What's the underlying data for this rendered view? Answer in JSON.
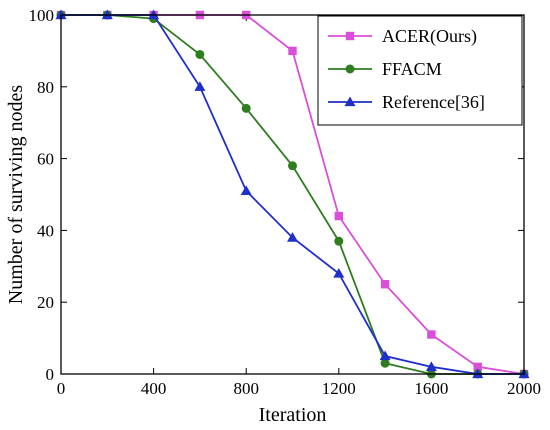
{
  "chart_data": {
    "type": "line",
    "title": "",
    "xlabel": "Iteration",
    "ylabel": "Number of surviving nodes",
    "xlim": [
      0,
      2000
    ],
    "ylim": [
      0,
      100
    ],
    "xticks": [
      0,
      400,
      800,
      1200,
      1600,
      2000
    ],
    "yticks": [
      0,
      20,
      40,
      60,
      80,
      100
    ],
    "x_tick_labels": [
      "0",
      "400",
      "800",
      "1200",
      "1600",
      "2000"
    ],
    "y_tick_labels": [
      "0",
      "20",
      "40",
      "60",
      "80",
      "100"
    ],
    "grid": false,
    "legend_position": "top-right",
    "x": [
      0,
      200,
      400,
      600,
      800,
      1000,
      1200,
      1400,
      1600,
      1800,
      2000
    ],
    "series": [
      {
        "name": "ACER(Ours)",
        "color": "#d94fd9",
        "marker": "square",
        "values": [
          100,
          100,
          100,
          100,
          100,
          90,
          44,
          25,
          11,
          2,
          0
        ]
      },
      {
        "name": "FFACM",
        "color": "#2e7d1f",
        "marker": "circle",
        "values": [
          100,
          100,
          99,
          89,
          74,
          58,
          37,
          3,
          0,
          0,
          0
        ]
      },
      {
        "name": "Reference[36]",
        "color": "#1f2fc9",
        "marker": "triangle",
        "values": [
          100,
          100,
          100,
          80,
          51,
          38,
          28,
          5,
          2,
          0,
          0
        ]
      }
    ]
  }
}
